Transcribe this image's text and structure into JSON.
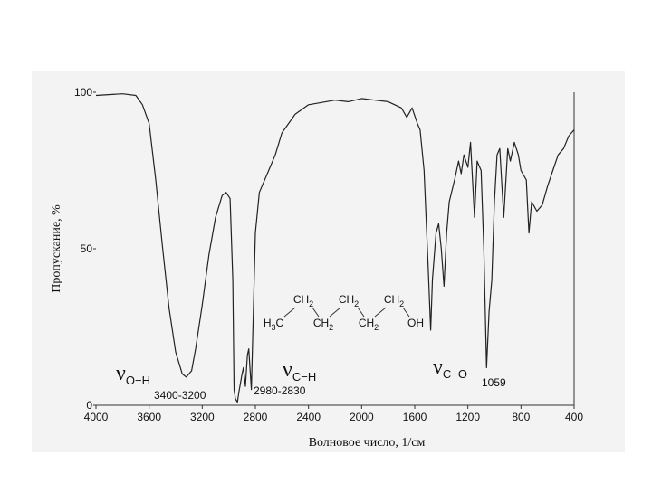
{
  "chart_data": {
    "type": "line",
    "x_label": "Волновое число, 1/см",
    "y_label": "Пропускание, %",
    "color": "#222222",
    "xlim": [
      4000,
      400
    ],
    "ylim": [
      0,
      100
    ],
    "xticks": [
      4000,
      3600,
      3200,
      2800,
      2400,
      2000,
      1600,
      1200,
      800,
      400
    ],
    "yticks": [
      0,
      50,
      100
    ],
    "x": [
      4000,
      3800,
      3700,
      3650,
      3600,
      3550,
      3500,
      3450,
      3400,
      3350,
      3320,
      3280,
      3250,
      3200,
      3150,
      3100,
      3050,
      3020,
      2990,
      2970,
      2960,
      2950,
      2935,
      2925,
      2900,
      2890,
      2875,
      2860,
      2850,
      2830,
      2800,
      2770,
      2700,
      2650,
      2600,
      2500,
      2400,
      2200,
      2100,
      2000,
      1900,
      1800,
      1700,
      1660,
      1620,
      1580,
      1560,
      1530,
      1500,
      1480,
      1467,
      1440,
      1420,
      1400,
      1380,
      1360,
      1340,
      1300,
      1270,
      1250,
      1230,
      1200,
      1180,
      1150,
      1130,
      1100,
      1080,
      1059,
      1040,
      1020,
      1000,
      980,
      960,
      930,
      900,
      880,
      850,
      820,
      800,
      760,
      740,
      720,
      680,
      640,
      600,
      560,
      520,
      480,
      440,
      400
    ],
    "values": [
      99,
      99.5,
      99,
      96,
      90,
      72,
      51,
      31,
      17,
      10,
      9,
      11,
      18,
      32,
      48,
      60,
      67,
      68,
      66,
      40,
      5,
      2,
      1,
      4,
      10,
      12,
      6,
      16,
      18,
      5,
      55,
      68,
      75,
      80,
      87,
      93,
      96,
      97.5,
      97,
      98,
      97.5,
      97,
      95,
      92,
      95,
      90,
      88,
      75,
      45,
      24,
      40,
      55,
      58,
      50,
      38,
      55,
      65,
      72,
      78,
      74,
      80,
      76,
      84,
      60,
      78,
      75,
      50,
      12,
      30,
      40,
      65,
      80,
      82,
      60,
      82,
      78,
      84,
      80,
      75,
      72,
      55,
      65,
      62,
      64,
      70,
      75,
      80,
      82,
      86,
      88
    ],
    "annotations": [
      {
        "symbol": "ν",
        "subscript": "O−H",
        "range": "3400-3200"
      },
      {
        "symbol": "ν",
        "subscript": "C−H",
        "range": "2980-2830"
      },
      {
        "symbol": "ν",
        "subscript": "C−O",
        "range": "1059"
      }
    ],
    "formula": {
      "top": [
        {
          "main": "CH",
          "sub": "2"
        },
        {
          "main": "CH",
          "sub": "2"
        },
        {
          "main": "CH",
          "sub": "2"
        }
      ],
      "bottom": [
        {
          "main": "H",
          "sub": "3",
          "tail": "C"
        },
        {
          "main": "CH",
          "sub": "2"
        },
        {
          "main": "CH",
          "sub": "2"
        },
        {
          "main": "OH"
        }
      ]
    }
  }
}
